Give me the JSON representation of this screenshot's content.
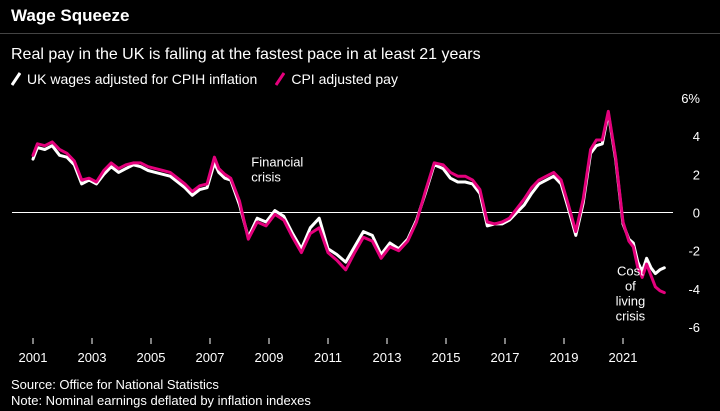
{
  "header": {
    "title": "Wage Squeeze",
    "subtitle": "Real pay in the UK is falling at the fastest pace in at least 21 years"
  },
  "footer": {
    "source": "Source: Office for National Statistics",
    "note": "Note: Nominal earnings deflated by inflation indexes"
  },
  "colors": {
    "background": "#000000",
    "wages": "#ffffff",
    "cpi": "#e4007c",
    "zero_line": "#ffffff",
    "divider": "#444444"
  },
  "chart_data": {
    "type": "line",
    "title": "Wage Squeeze",
    "subtitle": "Real pay in the UK is falling at the fastest pace in at least 21 years",
    "xlabel": "",
    "ylabel": "",
    "xlim": [
      2001,
      2022.55
    ],
    "ylim": [
      -6,
      6
    ],
    "x_ticks": [
      2001,
      2003,
      2005,
      2007,
      2009,
      2011,
      2013,
      2015,
      2017,
      2019,
      2021
    ],
    "x_tick_labels": [
      "2001",
      "2003",
      "2005",
      "2007",
      "2009",
      "2011",
      "2013",
      "2015",
      "2017",
      "2019",
      "2021"
    ],
    "y_ticks": [
      6,
      4,
      2,
      0,
      -2,
      -4,
      -6
    ],
    "y_tick_labels": [
      "6%",
      "4",
      "2",
      "0",
      "-2",
      "-4",
      "-6"
    ],
    "legend_position": "top-left",
    "annotations": [
      {
        "lines": [
          "Financial",
          "crisis"
        ],
        "x": 2008.4,
        "y": 2.4
      },
      {
        "lines": [
          "Cost",
          "of",
          "living",
          "crisis"
        ],
        "x": 2021.25,
        "y": -3.3
      }
    ],
    "series": [
      {
        "name": "UK wages adjusted for CPIH inflation",
        "color": "#ffffff",
        "x": [
          2001.0,
          2001.15,
          2001.4,
          2001.65,
          2001.9,
          2002.15,
          2002.4,
          2002.65,
          2002.9,
          2003.15,
          2003.4,
          2003.65,
          2003.9,
          2004.15,
          2004.4,
          2004.65,
          2004.9,
          2005.15,
          2005.4,
          2005.65,
          2005.9,
          2006.15,
          2006.4,
          2006.65,
          2006.9,
          2007.15,
          2007.3,
          2007.5,
          2007.7,
          2008.0,
          2008.3,
          2008.6,
          2008.9,
          2009.2,
          2009.5,
          2009.8,
          2010.1,
          2010.4,
          2010.7,
          2011.0,
          2011.3,
          2011.6,
          2011.9,
          2012.2,
          2012.5,
          2012.8,
          2013.1,
          2013.4,
          2013.7,
          2014.0,
          2014.3,
          2014.6,
          2014.9,
          2015.15,
          2015.4,
          2015.65,
          2015.9,
          2016.15,
          2016.4,
          2016.65,
          2016.9,
          2017.15,
          2017.4,
          2017.65,
          2017.9,
          2018.15,
          2018.4,
          2018.65,
          2018.9,
          2019.15,
          2019.4,
          2019.65,
          2019.9,
          2020.1,
          2020.3,
          2020.5,
          2020.75,
          2021.0,
          2021.2,
          2021.35,
          2021.5,
          2021.65,
          2021.8,
          2021.95,
          2022.1,
          2022.25,
          2022.4
        ],
        "values": [
          2.8,
          3.4,
          3.3,
          3.5,
          3.0,
          2.9,
          2.5,
          1.5,
          1.7,
          1.5,
          2.0,
          2.4,
          2.1,
          2.3,
          2.5,
          2.4,
          2.2,
          2.1,
          2.0,
          1.9,
          1.6,
          1.3,
          0.9,
          1.2,
          1.3,
          2.6,
          2.1,
          1.8,
          1.7,
          0.4,
          -1.3,
          -0.3,
          -0.5,
          0.1,
          -0.2,
          -1.1,
          -1.9,
          -0.8,
          -0.3,
          -1.9,
          -2.2,
          -2.6,
          -1.8,
          -1.0,
          -1.2,
          -2.2,
          -1.6,
          -1.9,
          -1.4,
          -0.4,
          1.0,
          2.5,
          2.3,
          1.8,
          1.6,
          1.6,
          1.5,
          1.0,
          -0.7,
          -0.6,
          -0.6,
          -0.4,
          0.0,
          0.4,
          1.0,
          1.5,
          1.7,
          1.9,
          1.5,
          0.2,
          -1.2,
          0.5,
          3.1,
          3.5,
          3.6,
          5.2,
          2.8,
          -0.6,
          -1.4,
          -1.6,
          -2.6,
          -3.1,
          -2.4,
          -2.9,
          -3.2,
          -3.0,
          -2.9
        ]
      },
      {
        "name": "CPI adjusted pay",
        "color": "#e4007c",
        "x": [
          2001.0,
          2001.15,
          2001.4,
          2001.65,
          2001.9,
          2002.15,
          2002.4,
          2002.65,
          2002.9,
          2003.15,
          2003.4,
          2003.65,
          2003.9,
          2004.15,
          2004.4,
          2004.65,
          2004.9,
          2005.15,
          2005.4,
          2005.65,
          2005.9,
          2006.15,
          2006.4,
          2006.65,
          2006.9,
          2007.15,
          2007.3,
          2007.5,
          2007.7,
          2008.0,
          2008.3,
          2008.6,
          2008.9,
          2009.2,
          2009.5,
          2009.8,
          2010.1,
          2010.4,
          2010.7,
          2011.0,
          2011.3,
          2011.6,
          2011.9,
          2012.2,
          2012.5,
          2012.8,
          2013.1,
          2013.4,
          2013.7,
          2014.0,
          2014.3,
          2014.6,
          2014.9,
          2015.15,
          2015.4,
          2015.65,
          2015.9,
          2016.15,
          2016.4,
          2016.65,
          2016.9,
          2017.15,
          2017.4,
          2017.65,
          2017.9,
          2018.15,
          2018.4,
          2018.65,
          2018.9,
          2019.15,
          2019.4,
          2019.65,
          2019.9,
          2020.1,
          2020.3,
          2020.5,
          2020.75,
          2021.0,
          2021.2,
          2021.35,
          2021.5,
          2021.65,
          2021.8,
          2021.95,
          2022.1,
          2022.25,
          2022.4
        ],
        "values": [
          3.0,
          3.6,
          3.5,
          3.7,
          3.3,
          3.1,
          2.7,
          1.7,
          1.8,
          1.6,
          2.2,
          2.6,
          2.3,
          2.5,
          2.6,
          2.6,
          2.4,
          2.3,
          2.2,
          2.1,
          1.8,
          1.5,
          1.1,
          1.4,
          1.5,
          2.9,
          2.3,
          2.0,
          1.8,
          0.6,
          -1.4,
          -0.5,
          -0.7,
          -0.1,
          -0.4,
          -1.3,
          -2.1,
          -1.1,
          -0.8,
          -2.1,
          -2.5,
          -3.0,
          -2.1,
          -1.3,
          -1.5,
          -2.4,
          -1.8,
          -2.0,
          -1.5,
          -0.5,
          1.1,
          2.6,
          2.5,
          2.1,
          1.9,
          1.9,
          1.7,
          1.2,
          -0.5,
          -0.6,
          -0.5,
          -0.3,
          0.2,
          0.7,
          1.3,
          1.7,
          1.9,
          2.1,
          1.7,
          0.4,
          -1.0,
          0.7,
          3.3,
          3.8,
          3.8,
          5.3,
          2.9,
          -0.5,
          -1.5,
          -1.8,
          -2.9,
          -3.4,
          -2.7,
          -3.3,
          -3.9,
          -4.1,
          -4.2
        ]
      }
    ]
  }
}
